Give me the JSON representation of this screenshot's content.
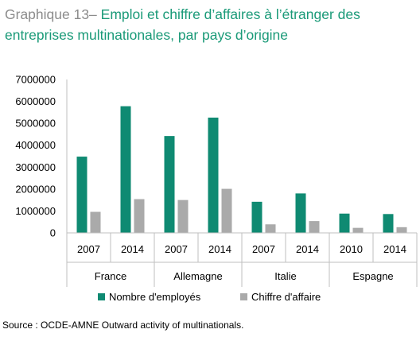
{
  "title": {
    "prefix": "Graphique 13– ",
    "text": "Emploi et chiffre d’affaires à l’étranger des entreprises multinationales, par pays d’origine"
  },
  "source": "Source : OCDE-AMNE Outward activity of multinationals.",
  "colors": {
    "employees": "#0f8a72",
    "turnover": "#aaaaaa",
    "axis": "#bfbfbf"
  },
  "chart_data": {
    "type": "bar",
    "categories": [
      {
        "year": "2007",
        "group": "France"
      },
      {
        "year": "2014",
        "group": "France"
      },
      {
        "year": "2007",
        "group": "Allemagne"
      },
      {
        "year": "2014",
        "group": "Allemagne"
      },
      {
        "year": "2007",
        "group": "Italie"
      },
      {
        "year": "2014",
        "group": "Italie"
      },
      {
        "year": "2010",
        "group": "Espagne"
      },
      {
        "year": "2014",
        "group": "Espagne"
      }
    ],
    "groups": [
      "France",
      "Allemagne",
      "Italie",
      "Espagne"
    ],
    "series": [
      {
        "name": "Nombre d'employés",
        "values": [
          3480000,
          5780000,
          4420000,
          5260000,
          1420000,
          1800000,
          880000,
          860000
        ]
      },
      {
        "name": "Chiffre d'affaire",
        "values": [
          960000,
          1540000,
          1500000,
          2010000,
          390000,
          540000,
          230000,
          260000
        ]
      }
    ],
    "yticks": [
      "0",
      "1000000",
      "2000000",
      "3000000",
      "4000000",
      "5000000",
      "6000000",
      "7000000"
    ],
    "ylim": [
      0,
      7000000
    ],
    "grid": false,
    "legend": "bottom"
  }
}
